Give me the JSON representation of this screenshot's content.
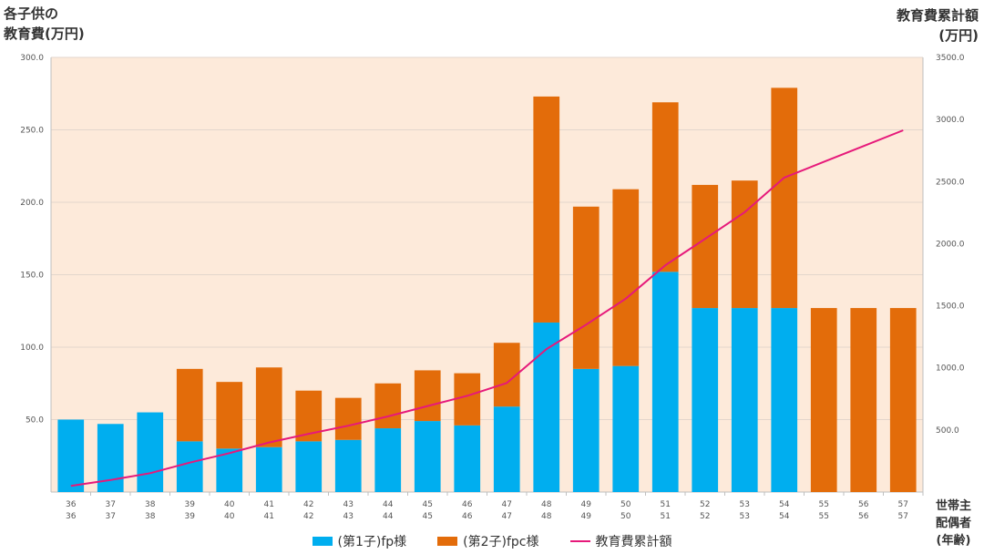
{
  "chart_data": {
    "type": "bar",
    "title": "",
    "ylabel_left": "各子供の\n教育費(万円)",
    "ylabel_right": "教育費累計額\n(万円)",
    "xlabel": "世帯主\n配偶者\n(年齢)",
    "categories_row1": [
      "36",
      "37",
      "38",
      "39",
      "40",
      "41",
      "42",
      "43",
      "44",
      "45",
      "46",
      "47",
      "48",
      "49",
      "50",
      "51",
      "52",
      "53",
      "54",
      "55",
      "56",
      "57"
    ],
    "categories_row2": [
      "36",
      "37",
      "38",
      "39",
      "40",
      "41",
      "42",
      "43",
      "44",
      "45",
      "46",
      "47",
      "48",
      "49",
      "50",
      "51",
      "52",
      "53",
      "54",
      "55",
      "56",
      "57"
    ],
    "ylim_left": [
      0,
      300
    ],
    "yticks_left": [
      "50.0",
      "100.0",
      "150.0",
      "200.0",
      "250.0",
      "300.0"
    ],
    "ylim_right": [
      0,
      3500
    ],
    "yticks_right": [
      "500.0",
      "1000.0",
      "1500.0",
      "2000.0",
      "2500.0",
      "3000.0",
      "3500.0"
    ],
    "series": [
      {
        "name": "(第1子)fp様",
        "kind": "bar",
        "color": "#00AEEF",
        "values": [
          50,
          47,
          55,
          35,
          30,
          31,
          35,
          36,
          44,
          49,
          46,
          59,
          117,
          85,
          87,
          152,
          127,
          127,
          127,
          0,
          0,
          0
        ]
      },
      {
        "name": "(第2子)fpc様",
        "kind": "bar",
        "color": "#E36C0A",
        "values": [
          0,
          0,
          0,
          50,
          46,
          55,
          35,
          29,
          31,
          35,
          36,
          44,
          156,
          112,
          122,
          117,
          85,
          88,
          152,
          127,
          127,
          127
        ]
      },
      {
        "name": "教育費累計額",
        "kind": "line",
        "color": "#E6197A",
        "axis": "right",
        "values": [
          50,
          97,
          152,
          237,
          313,
          399,
          469,
          534,
          609,
          693,
          775,
          878,
          1151,
          1348,
          1557,
          1826,
          2038,
          2253,
          2532,
          2659,
          2786,
          2913
        ]
      }
    ],
    "grid": true,
    "legend_position": "bottom",
    "plot_background": "#FDEADA"
  }
}
